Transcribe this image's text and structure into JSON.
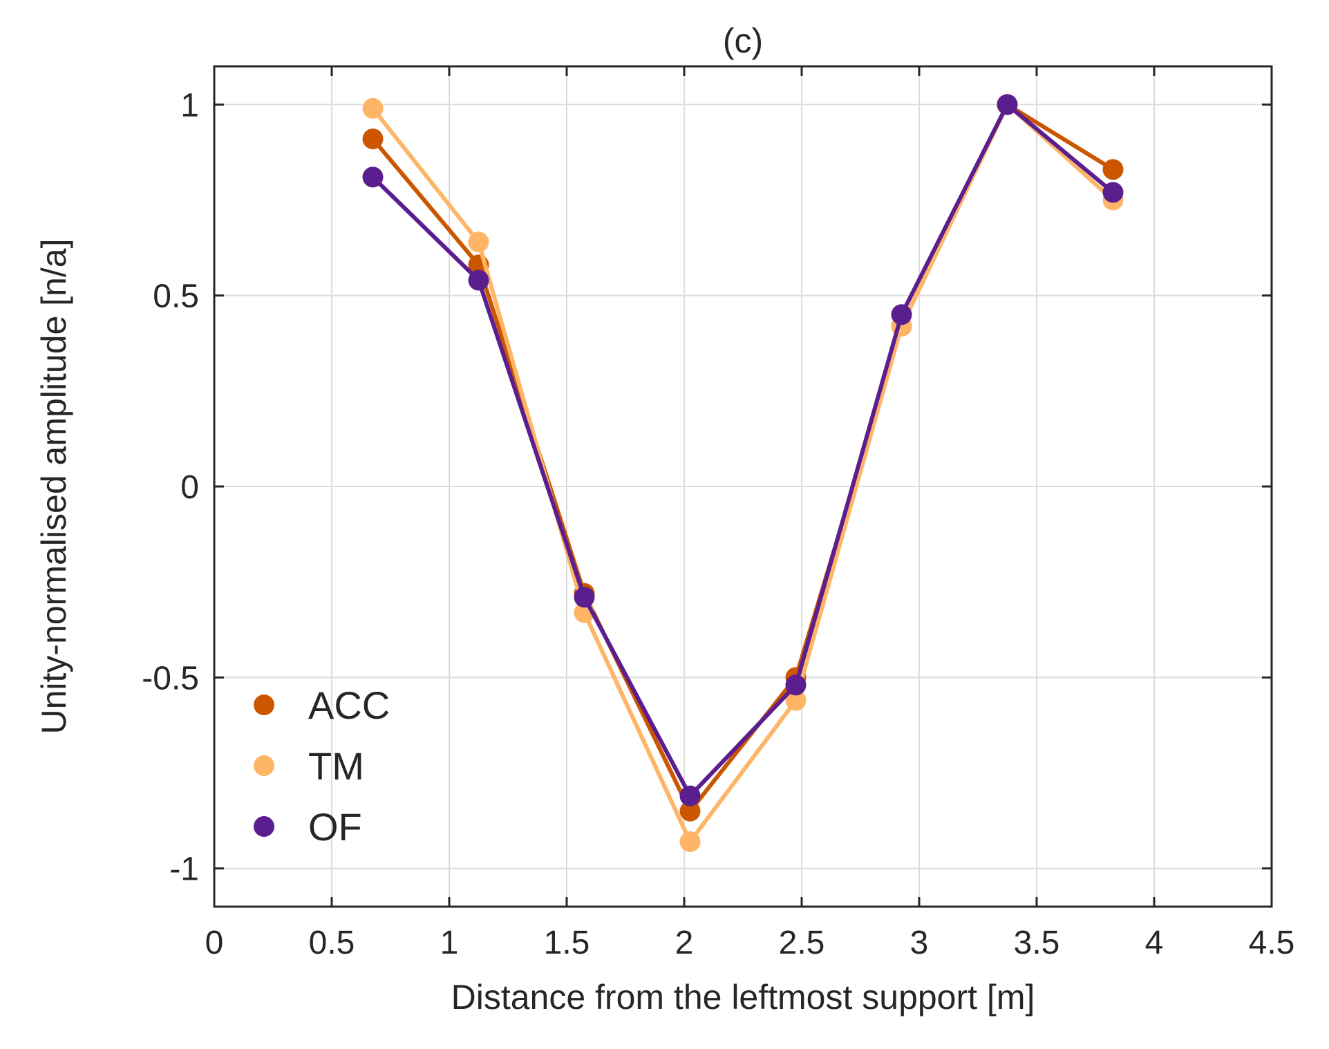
{
  "chart_data": {
    "type": "line",
    "title": "(c)",
    "xlabel": "Distance from the leftmost support [m]",
    "ylabel": "Unity-normalised amplitude [n/a]",
    "xlim": [
      0,
      4.5
    ],
    "ylim": [
      -1.1,
      1.1
    ],
    "xticks": [
      0,
      0.5,
      1,
      1.5,
      2,
      2.5,
      3,
      3.5,
      4,
      4.5
    ],
    "xtick_labels": [
      "0",
      "0.5",
      "1",
      "1.5",
      "2",
      "2.5",
      "3",
      "3.5",
      "4",
      "4.5"
    ],
    "yticks": [
      -1,
      -0.5,
      0,
      0.5,
      1
    ],
    "ytick_labels": [
      "-1",
      "-0.5",
      "0",
      "0.5",
      "1"
    ],
    "grid": true,
    "legend_position": "bottom-left",
    "x": [
      0.675,
      1.125,
      1.575,
      2.025,
      2.475,
      2.925,
      3.375,
      3.825
    ],
    "series": [
      {
        "name": "ACC",
        "color": "#cc5500",
        "values": [
          0.91,
          0.58,
          -0.28,
          -0.85,
          -0.5,
          0.42,
          1.0,
          0.83
        ]
      },
      {
        "name": "TM",
        "color": "#ffb566",
        "values": [
          0.99,
          0.64,
          -0.33,
          -0.93,
          -0.56,
          0.42,
          1.0,
          0.75
        ]
      },
      {
        "name": "OF",
        "color": "#5b1e8f",
        "values": [
          0.81,
          0.54,
          -0.29,
          -0.81,
          -0.52,
          0.45,
          1.0,
          0.77
        ]
      }
    ]
  }
}
